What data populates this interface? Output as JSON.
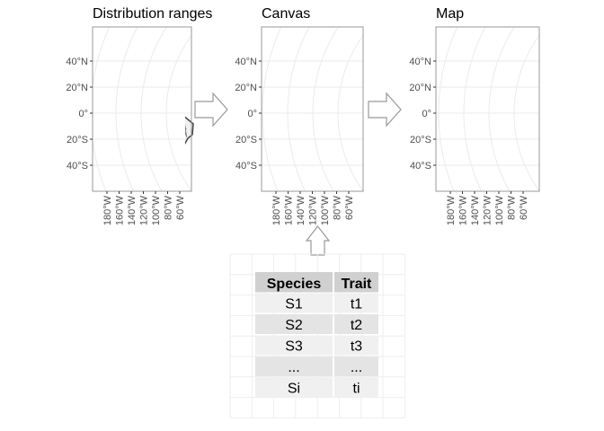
{
  "panels": [
    {
      "title": "Distribution ranges",
      "kind": "ranges"
    },
    {
      "title": "Canvas",
      "kind": "canvas"
    },
    {
      "title": "Map",
      "kind": "map"
    }
  ],
  "y_ticks": [
    "40°N",
    "20°N",
    "0°",
    "20°S",
    "40°S"
  ],
  "x_ticks": [
    "180°W",
    "160°W",
    "140°W",
    "120°W",
    "100°W",
    "80°W",
    "60°W"
  ],
  "table": {
    "headers": [
      "Species",
      "Trait"
    ],
    "rows": [
      [
        "S1",
        "t1"
      ],
      [
        "S2",
        "t2"
      ],
      [
        "S3",
        "t3"
      ],
      [
        "...",
        "..."
      ],
      [
        "Si",
        "ti"
      ]
    ]
  },
  "colors": {
    "hex_fill": "#e0e0e0",
    "hex_stroke": "#5a5a5a",
    "map_palette": [
      "#00204d",
      "#31446b",
      "#666970",
      "#958f78",
      "#cbba69",
      "#ffea46"
    ]
  }
}
